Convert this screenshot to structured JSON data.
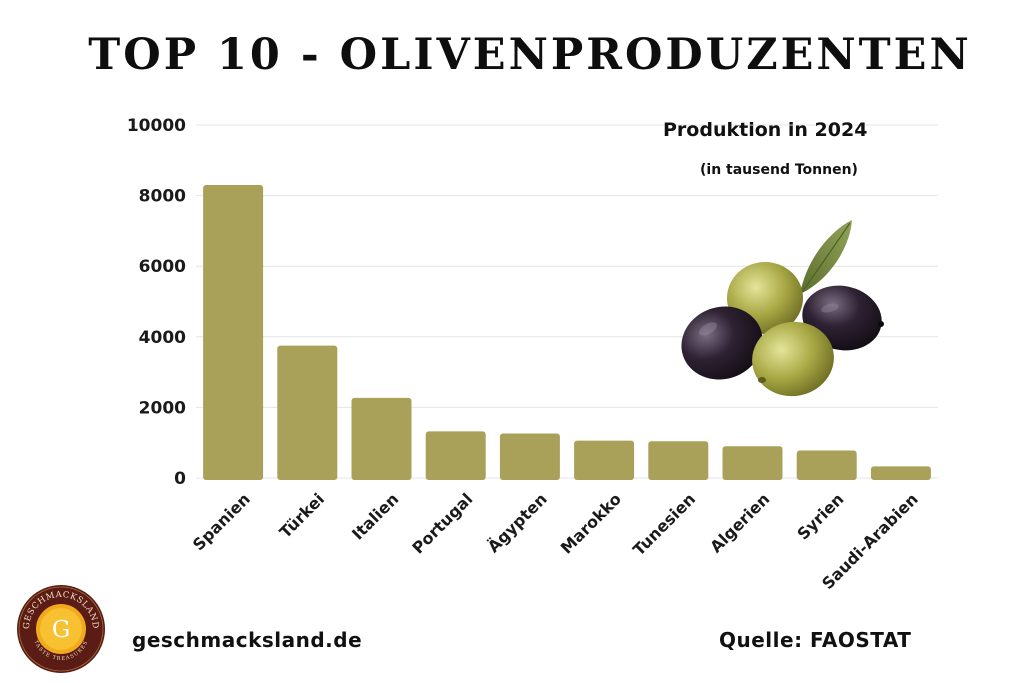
{
  "header": {
    "title": "TOP 10 - OLIVENPRODUZENTEN"
  },
  "chart_data": {
    "type": "bar",
    "title": "Produktion in 2024",
    "subtitle": "(in tausend Tonnen)",
    "categories": [
      "Spanien",
      "Türkei",
      "Italien",
      "Portugal",
      "Ägypten",
      "Marokko",
      "Tunesien",
      "Algerien",
      "Syrien",
      "Saudi-Arabien"
    ],
    "values": [
      8300,
      3750,
      2270,
      1320,
      1260,
      1060,
      1040,
      900,
      780,
      330
    ],
    "ylim": [
      0,
      10000
    ],
    "yticks": [
      "0",
      "2000",
      "4000",
      "6000",
      "8000",
      "10000"
    ],
    "xlabel": "",
    "ylabel": "",
    "grid": true,
    "bar_color": "#a9a05a"
  },
  "footer": {
    "website": "geschmacksland.de",
    "source": "Quelle: FAOSTAT",
    "logo_top_text": "GESCHMACKSLAND",
    "logo_bottom_text": "TASTE TREASURES",
    "logo_letter": "G"
  },
  "illustration": {
    "icon": "olives-icon"
  }
}
